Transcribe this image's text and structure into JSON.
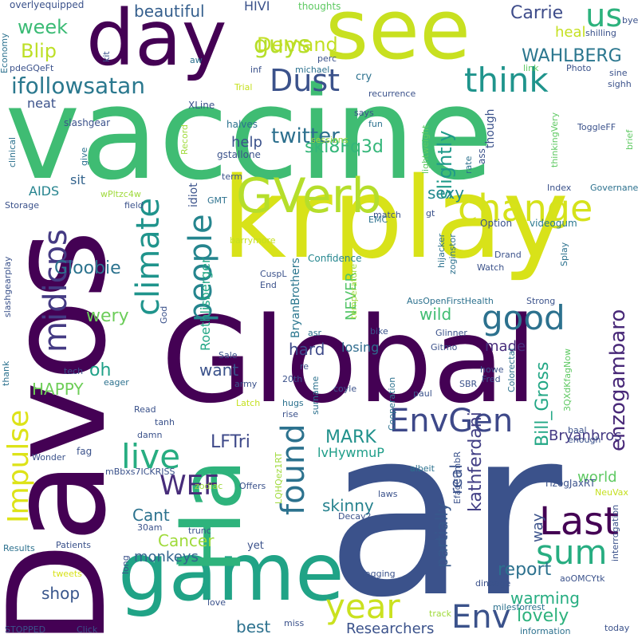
{
  "words": [
    {
      "text": "vaccine",
      "color": "#3fbc73"
    },
    {
      "text": "Davos",
      "color": "#440154"
    },
    {
      "text": "ar",
      "color": "#3b528b"
    },
    {
      "text": "Global",
      "color": "#440154"
    },
    {
      "text": "krplay",
      "color": "#d8e219"
    },
    {
      "text": "day",
      "color": "#440154"
    },
    {
      "text": "see",
      "color": "#c8e020"
    },
    {
      "text": "game",
      "color": "#20a386"
    },
    {
      "text": "Ha",
      "color": "#2eb37c"
    },
    {
      "text": "GVerb",
      "color": "#b5de2b"
    },
    {
      "text": "change",
      "color": "#d5e21a"
    },
    {
      "text": "Dust",
      "color": "#3b528b"
    },
    {
      "text": "think",
      "color": "#1f948c"
    },
    {
      "text": "good",
      "color": "#2c718e"
    },
    {
      "text": "year",
      "color": "#cae11f"
    },
    {
      "text": "Last",
      "color": "#440154"
    },
    {
      "text": "sum",
      "color": "#27ad81"
    },
    {
      "text": "Env",
      "color": "#3b528b"
    },
    {
      "text": "EnvGen",
      "color": "#3e4989"
    },
    {
      "text": "live",
      "color": "#27ad81"
    },
    {
      "text": "people",
      "color": "#25858e"
    },
    {
      "text": "climate",
      "color": "#1f948c"
    },
    {
      "text": "midicps",
      "color": "#443a83"
    },
    {
      "text": "Impulse",
      "color": "#dde318"
    },
    {
      "text": "WEF",
      "color": "#472c7a"
    },
    {
      "text": "found",
      "color": "#2c728e"
    },
    {
      "text": "guys",
      "color": "#b5de2b"
    },
    {
      "text": "us",
      "color": "#2db27d"
    },
    {
      "text": "ifollowsatan",
      "color": "#2a788e"
    },
    {
      "text": "Demand",
      "color": "#c2df23"
    },
    {
      "text": "week",
      "color": "#3bbb75"
    },
    {
      "text": "Blip",
      "color": "#bddf26"
    },
    {
      "text": "beautiful",
      "color": "#355f8d"
    },
    {
      "text": "Carrie",
      "color": "#3e4c8a"
    },
    {
      "text": "WAHLBERG",
      "color": "#2a768e"
    },
    {
      "text": "heal",
      "color": "#c5e021"
    },
    {
      "text": "twitter",
      "color": "#2d708e"
    },
    {
      "text": "ski8Fq3d",
      "color": "#34b679"
    },
    {
      "text": "slightly",
      "color": "#1f9a8a"
    },
    {
      "text": "sexy",
      "color": "#23898e"
    },
    {
      "text": "Gloobie",
      "color": "#2c738e"
    },
    {
      "text": "hard",
      "color": "#3e4a89"
    },
    {
      "text": "wery",
      "color": "#6ccd5a"
    },
    {
      "text": "wild",
      "color": "#40bd72"
    },
    {
      "text": "oh",
      "color": "#1fa188"
    },
    {
      "text": "want",
      "color": "#3b528b"
    },
    {
      "text": "HAPPY",
      "color": "#6ece58"
    },
    {
      "text": "LFTri",
      "color": "#3e4989"
    },
    {
      "text": "MARK",
      "color": "#21918c"
    },
    {
      "text": "Bill_Gross",
      "color": "#22a785"
    },
    {
      "text": "enzogambaro",
      "color": "#482878"
    },
    {
      "text": "Bryanbros",
      "color": "#443983"
    },
    {
      "text": "kathferdani",
      "color": "#423f85"
    },
    {
      "text": "partially",
      "color": "#38588c"
    },
    {
      "text": "real",
      "color": "#3b528b"
    },
    {
      "text": "report",
      "color": "#2c718e"
    },
    {
      "text": "warming",
      "color": "#26ad81"
    },
    {
      "text": "lovely",
      "color": "#2db27d"
    },
    {
      "text": "world",
      "color": "#5ec962"
    },
    {
      "text": "way",
      "color": "#3b528b"
    },
    {
      "text": "skinny",
      "color": "#26828e"
    },
    {
      "text": "Cant",
      "color": "#2c728e"
    },
    {
      "text": "Cancer",
      "color": "#9fda3a"
    },
    {
      "text": "monkeys",
      "color": "#32648e"
    },
    {
      "text": "shop",
      "color": "#39568c"
    },
    {
      "text": "best",
      "color": "#2c718e"
    },
    {
      "text": "Researchers",
      "color": "#3b528b"
    },
    {
      "text": "NEVER",
      "color": "#54c568"
    },
    {
      "text": "made",
      "color": "#472d7b"
    },
    {
      "text": "losing",
      "color": "#2f6c8e"
    },
    {
      "text": "help",
      "color": "#3b528b"
    },
    {
      "text": "AIDS",
      "color": "#25838e"
    },
    {
      "text": "sit",
      "color": "#33638d"
    },
    {
      "text": "neat",
      "color": "#3b528b"
    },
    {
      "text": "Roethlisberger",
      "color": "#22a785"
    },
    {
      "text": "BryanBrothers",
      "color": "#2a768e"
    },
    {
      "text": "idiot",
      "color": "#3b528b"
    },
    {
      "text": "lvHywmuP",
      "color": "#1f9e89"
    },
    {
      "text": "Confidence",
      "color": "#24868e"
    },
    {
      "text": "Option",
      "color": "#3b528b"
    },
    {
      "text": "videogum",
      "color": "#2a788e"
    },
    {
      "text": "HIVI",
      "color": "#3b528b"
    },
    {
      "text": "thoughts",
      "color": "#5ec962"
    },
    {
      "text": "overlyequipped",
      "color": "#3b528b"
    },
    {
      "text": "Economy",
      "color": "#2c718e"
    },
    {
      "text": "pdeGQeFt",
      "color": "#3b528b"
    },
    {
      "text": "kit",
      "color": "#3b528b"
    },
    {
      "text": "michael",
      "color": "#2c718e"
    },
    {
      "text": "perc",
      "color": "#3b528b"
    },
    {
      "text": "inf",
      "color": "#3b528b"
    },
    {
      "text": "aw",
      "color": "#2c718e"
    },
    {
      "text": "Photo",
      "color": "#3b528b"
    },
    {
      "text": "link",
      "color": "#5ec962"
    },
    {
      "text": "sine",
      "color": "#3b528b"
    },
    {
      "text": "sighh",
      "color": "#3b528b"
    },
    {
      "text": "cry",
      "color": "#2c718e"
    },
    {
      "text": "recurrence",
      "color": "#3b528b"
    },
    {
      "text": "Trial",
      "color": "#c5e021"
    },
    {
      "text": "XLine",
      "color": "#3b528b"
    },
    {
      "text": "slashgear",
      "color": "#3b528b"
    },
    {
      "text": "halves",
      "color": "#2c718e"
    },
    {
      "text": "says",
      "color": "#3b528b"
    },
    {
      "text": "fun",
      "color": "#2c718e"
    },
    {
      "text": "gstallone",
      "color": "#3b528b"
    },
    {
      "text": "sessions",
      "color": "#9fda3a"
    },
    {
      "text": "ToggleFF",
      "color": "#3b528b"
    },
    {
      "text": "brief",
      "color": "#5ec962"
    },
    {
      "text": "thinkingVery",
      "color": "#5ec962"
    },
    {
      "text": "lightweight",
      "color": "#5ec962"
    },
    {
      "text": "though",
      "color": "#3b528b"
    },
    {
      "text": "ass",
      "color": "#3b528b"
    },
    {
      "text": "rate",
      "color": "#2c718e"
    },
    {
      "text": "Record",
      "color": "#9fda3a"
    },
    {
      "text": "clinical",
      "color": "#2c718e"
    },
    {
      "text": "give",
      "color": "#2c718e"
    },
    {
      "text": "wPltzc4w",
      "color": "#9fda3a"
    },
    {
      "text": "term",
      "color": "#3b528b"
    },
    {
      "text": "GMT",
      "color": "#2c718e"
    },
    {
      "text": "Index",
      "color": "#3b528b"
    },
    {
      "text": "Governane",
      "color": "#2c718e"
    },
    {
      "text": "field",
      "color": "#3b528b"
    },
    {
      "text": "Storage",
      "color": "#3b528b"
    },
    {
      "text": "match",
      "color": "#3b528b"
    },
    {
      "text": "gt",
      "color": "#3b528b"
    },
    {
      "text": "EMC",
      "color": "#2c718e"
    },
    {
      "text": "barrymore",
      "color": "#c5e021"
    },
    {
      "text": "slashgearplay",
      "color": "#3b528b"
    },
    {
      "text": "CuspL",
      "color": "#3b528b"
    },
    {
      "text": "End",
      "color": "#3b528b"
    },
    {
      "text": "hijacker",
      "color": "#2c718e"
    },
    {
      "text": "zoginstor",
      "color": "#2c718e"
    },
    {
      "text": "Drand",
      "color": "#3b528b"
    },
    {
      "text": "Watch",
      "color": "#3b528b"
    },
    {
      "text": "Splay",
      "color": "#2c718e"
    },
    {
      "text": "Strong",
      "color": "#3b528b"
    },
    {
      "text": "AusOpenFirstHealth",
      "color": "#2c718e"
    },
    {
      "text": "temperature",
      "color": "#9fda3a"
    },
    {
      "text": "EfagCHmbR",
      "color": "#3b528b"
    },
    {
      "text": "Glinner",
      "color": "#3b528b"
    },
    {
      "text": "Gitmo",
      "color": "#3b528b"
    },
    {
      "text": "asr",
      "color": "#2c718e"
    },
    {
      "text": "bike",
      "color": "#3b528b"
    },
    {
      "text": "God",
      "color": "#3b528b"
    },
    {
      "text": "thank",
      "color": "#2c718e"
    },
    {
      "text": "Sale",
      "color": "#3b528b"
    },
    {
      "text": "tech",
      "color": "#3b528b"
    },
    {
      "text": "army",
      "color": "#3b528b"
    },
    {
      "text": "20th",
      "color": "#3b528b"
    },
    {
      "text": "re",
      "color": "#3b528b"
    },
    {
      "text": "howe",
      "color": "#3b528b"
    },
    {
      "text": "3QXdKfagNow",
      "color": "#5ec962"
    },
    {
      "text": "Colorectal",
      "color": "#2c718e"
    },
    {
      "text": "eager",
      "color": "#2c718e"
    },
    {
      "text": "coyle",
      "color": "#3b528b"
    },
    {
      "text": "paul",
      "color": "#3b528b"
    },
    {
      "text": "SBR",
      "color": "#3b528b"
    },
    {
      "text": "Fred",
      "color": "#3b528b"
    },
    {
      "text": "surname",
      "color": "#2c718e"
    },
    {
      "text": "hugs",
      "color": "#2c718e"
    },
    {
      "text": "Latch",
      "color": "#c5e021"
    },
    {
      "text": "Read",
      "color": "#3b528b"
    },
    {
      "text": "tanh",
      "color": "#3b528b"
    },
    {
      "text": "damn",
      "color": "#3b528b"
    },
    {
      "text": "Cooperation",
      "color": "#2c718e"
    },
    {
      "text": "baal",
      "color": "#3b528b"
    },
    {
      "text": "enough",
      "color": "#3b528b"
    },
    {
      "text": "rise",
      "color": "#3b528b"
    },
    {
      "text": "fag",
      "color": "#3b528b"
    },
    {
      "text": "Wonder",
      "color": "#3b528b"
    },
    {
      "text": "mBbxs7ICKRISS",
      "color": "#3b528b"
    },
    {
      "text": "LQHQez1RT",
      "color": "#9fda3a"
    },
    {
      "text": "albeit",
      "color": "#2c718e"
    },
    {
      "text": "laws",
      "color": "#3b528b"
    },
    {
      "text": "TlzogJaxRT",
      "color": "#3b528b"
    },
    {
      "text": "NeuVax",
      "color": "#c5e021"
    },
    {
      "text": "interrogation",
      "color": "#3b528b"
    },
    {
      "text": "zodiac",
      "color": "#9fda3a"
    },
    {
      "text": "Offers",
      "color": "#3b528b"
    },
    {
      "text": "Decay2",
      "color": "#3b528b"
    },
    {
      "text": "30am",
      "color": "#3b528b"
    },
    {
      "text": "trunc",
      "color": "#3b528b"
    },
    {
      "text": "yet",
      "color": "#3b528b"
    },
    {
      "text": "Results",
      "color": "#2c718e"
    },
    {
      "text": "Patients",
      "color": "#3b528b"
    },
    {
      "text": "long",
      "color": "#3b528b"
    },
    {
      "text": "tweets",
      "color": "#d8e219"
    },
    {
      "text": "aoOMCYtk",
      "color": "#3b528b"
    },
    {
      "text": "fagging",
      "color": "#3b528b"
    },
    {
      "text": "dineage",
      "color": "#3b528b"
    },
    {
      "text": "love",
      "color": "#3b528b"
    },
    {
      "text": "miss",
      "color": "#3b528b"
    },
    {
      "text": "milesforrest",
      "color": "#2c718e"
    },
    {
      "text": "track",
      "color": "#9fda3a"
    },
    {
      "text": "information",
      "color": "#2c718e"
    },
    {
      "text": "today",
      "color": "#3b528b"
    },
    {
      "text": "STOPPED",
      "color": "#3b528b"
    },
    {
      "text": "Click",
      "color": "#3b528b"
    },
    {
      "text": "shilling",
      "color": "#3b528b"
    },
    {
      "text": "bye",
      "color": "#3b528b"
    }
  ]
}
